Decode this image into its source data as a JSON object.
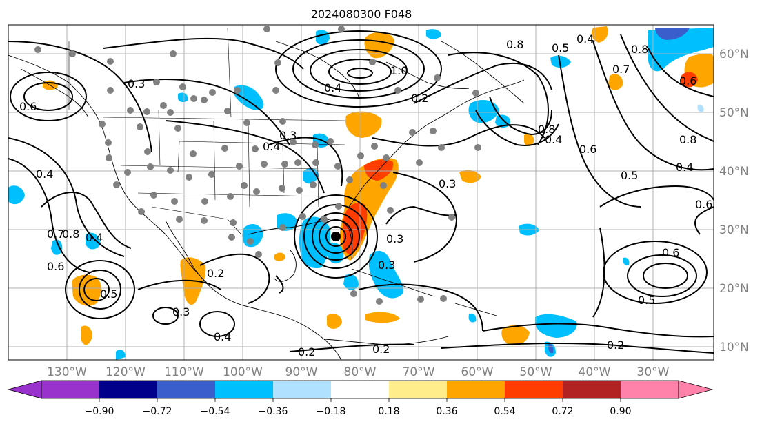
{
  "title": "2024080300 F048",
  "lon_labels": [
    "130°W",
    "120°W",
    "110°W",
    "100°W",
    "90°W",
    "80°W",
    "70°W",
    "60°W",
    "50°W",
    "40°W",
    "30°W"
  ],
  "lat_labels": [
    "60°N",
    "50°N",
    "40°N",
    "30°N",
    "20°N",
    "10°N"
  ],
  "colorbar": {
    "ticks": [
      "−0.90",
      "−0.72",
      "−0.54",
      "−0.36",
      "−0.18",
      "0.18",
      "0.36",
      "0.54",
      "0.72",
      "0.90"
    ],
    "colors": [
      "#9932cc",
      "#00008b",
      "#3a5fcd",
      "#00bfff",
      "#b0e2ff",
      "#ffffff",
      "#ffec8b",
      "#ffa500",
      "#ff3d00",
      "#b22222",
      "#ff82ab"
    ]
  },
  "contour_labels": [
    {
      "text": "0.3"
    },
    {
      "text": "0.6"
    },
    {
      "text": "0.4"
    },
    {
      "text": "0.7"
    },
    {
      "text": "0.8"
    },
    {
      "text": "0.4"
    },
    {
      "text": "0.6"
    },
    {
      "text": "0.5"
    },
    {
      "text": "0.2"
    },
    {
      "text": "0.3"
    },
    {
      "text": "0.4"
    },
    {
      "text": "0.4"
    },
    {
      "text": "0.3"
    },
    {
      "text": "0.4"
    },
    {
      "text": "0.2"
    },
    {
      "text": "1.0"
    },
    {
      "text": "0.8"
    },
    {
      "text": "0.5"
    },
    {
      "text": "0.4"
    },
    {
      "text": "0.7"
    },
    {
      "text": "0.8"
    },
    {
      "text": "0.6"
    },
    {
      "text": "0.8"
    },
    {
      "text": "0.5"
    },
    {
      "text": "0.4"
    },
    {
      "text": "0.6"
    },
    {
      "text": "0.8"
    },
    {
      "text": "0.6"
    },
    {
      "text": "0.5"
    },
    {
      "text": "0.2"
    },
    {
      "text": "0.3"
    },
    {
      "text": "0.3"
    },
    {
      "text": "0.6"
    },
    {
      "text": "0.3"
    },
    {
      "text": "0.2"
    },
    {
      "text": "0.4"
    },
    {
      "text": "0.2"
    }
  ],
  "colors": {
    "grid": "#b0b0b0",
    "axis_text": "#808080"
  }
}
